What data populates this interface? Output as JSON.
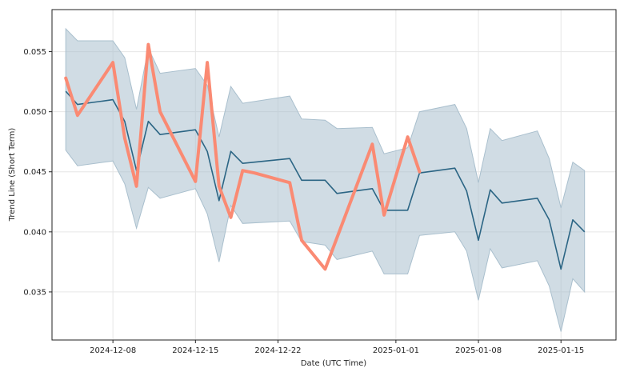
{
  "chart_data": {
    "type": "line",
    "title": "",
    "xlabel": "Date (UTC Time)",
    "ylabel": "Trend Line (Short Term)",
    "xlim": [
      "2024-12-02T20:00",
      "2025-01-19T16:00"
    ],
    "ylim": [
      0.031,
      0.0585
    ],
    "grid": true,
    "legend": "none",
    "x_ticks": [
      "2024-12-08",
      "2024-12-15",
      "2024-12-22",
      "2025-01-01",
      "2025-01-08",
      "2025-01-15"
    ],
    "y_ticks": [
      "0.035",
      "0.040",
      "0.045",
      "0.050",
      "0.055"
    ],
    "colors": {
      "band": "#a9bfcd",
      "trend": "#2b6584",
      "price": "#fa8a73",
      "grid": "#e6e6e6"
    },
    "series": [
      {
        "role": "confidence-band",
        "x": [
          "2024-12-04",
          "2024-12-05",
          "2024-12-08",
          "2024-12-09",
          "2024-12-10",
          "2024-12-11",
          "2024-12-12",
          "2024-12-15",
          "2024-12-16",
          "2024-12-17",
          "2024-12-18",
          "2024-12-19",
          "2024-12-23",
          "2024-12-24",
          "2024-12-26",
          "2024-12-27",
          "2024-12-30",
          "2024-12-31",
          "2025-01-02",
          "2025-01-03",
          "2025-01-06",
          "2025-01-07",
          "2025-01-08",
          "2025-01-09",
          "2025-01-10",
          "2025-01-13",
          "2025-01-14",
          "2025-01-15",
          "2025-01-16",
          "2025-01-17"
        ],
        "lower": [
          0.0468,
          0.0455,
          0.0459,
          0.044,
          0.0403,
          0.0437,
          0.0428,
          0.0436,
          0.0415,
          0.0375,
          0.0422,
          0.0407,
          0.0409,
          0.0392,
          0.0389,
          0.0377,
          0.0384,
          0.0365,
          0.0365,
          0.0397,
          0.04,
          0.0384,
          0.0343,
          0.0386,
          0.037,
          0.0376,
          0.0355,
          0.0317,
          0.0361,
          0.035
        ],
        "upper": [
          0.0569,
          0.0559,
          0.0559,
          0.0545,
          0.0502,
          0.0553,
          0.0532,
          0.0536,
          0.0522,
          0.0479,
          0.0521,
          0.0507,
          0.0513,
          0.0494,
          0.0493,
          0.0486,
          0.0487,
          0.0465,
          0.047,
          0.05,
          0.0506,
          0.0486,
          0.0441,
          0.0486,
          0.0476,
          0.0484,
          0.0461,
          0.042,
          0.0458,
          0.0451
        ]
      },
      {
        "role": "trend-line",
        "x": [
          "2024-12-04",
          "2024-12-05",
          "2024-12-08",
          "2024-12-09",
          "2024-12-10",
          "2024-12-11",
          "2024-12-12",
          "2024-12-15",
          "2024-12-16",
          "2024-12-17",
          "2024-12-18",
          "2024-12-19",
          "2024-12-23",
          "2024-12-24",
          "2024-12-26",
          "2024-12-27",
          "2024-12-30",
          "2024-12-31",
          "2025-01-02",
          "2025-01-03",
          "2025-01-06",
          "2025-01-07",
          "2025-01-08",
          "2025-01-09",
          "2025-01-10",
          "2025-01-13",
          "2025-01-14",
          "2025-01-15",
          "2025-01-16",
          "2025-01-17"
        ],
        "values": [
          0.0517,
          0.0506,
          0.051,
          0.0492,
          0.0451,
          0.0492,
          0.0481,
          0.0485,
          0.0467,
          0.0426,
          0.0467,
          0.0457,
          0.0461,
          0.0443,
          0.0443,
          0.0432,
          0.0436,
          0.0418,
          0.0418,
          0.0449,
          0.0453,
          0.0434,
          0.0393,
          0.0435,
          0.0424,
          0.0428,
          0.041,
          0.0369,
          0.041,
          0.04
        ]
      },
      {
        "role": "price-line",
        "x": [
          "2024-12-04",
          "2024-12-05",
          "2024-12-08",
          "2024-12-09",
          "2024-12-10",
          "2024-12-11",
          "2024-12-12",
          "2024-12-15",
          "2024-12-16",
          "2024-12-17",
          "2024-12-18",
          "2024-12-19",
          "2024-12-20",
          "2024-12-23",
          "2024-12-24",
          "2024-12-26",
          "2024-12-30",
          "2024-12-31",
          "2025-01-02",
          "2025-01-03"
        ],
        "values": [
          0.0528,
          0.0497,
          0.0541,
          0.0478,
          0.0438,
          0.0556,
          0.05,
          0.0442,
          0.0541,
          0.0438,
          0.0412,
          0.0451,
          0.0449,
          0.0441,
          0.0393,
          0.0369,
          0.0473,
          0.0414,
          0.0479,
          0.045
        ]
      }
    ]
  }
}
